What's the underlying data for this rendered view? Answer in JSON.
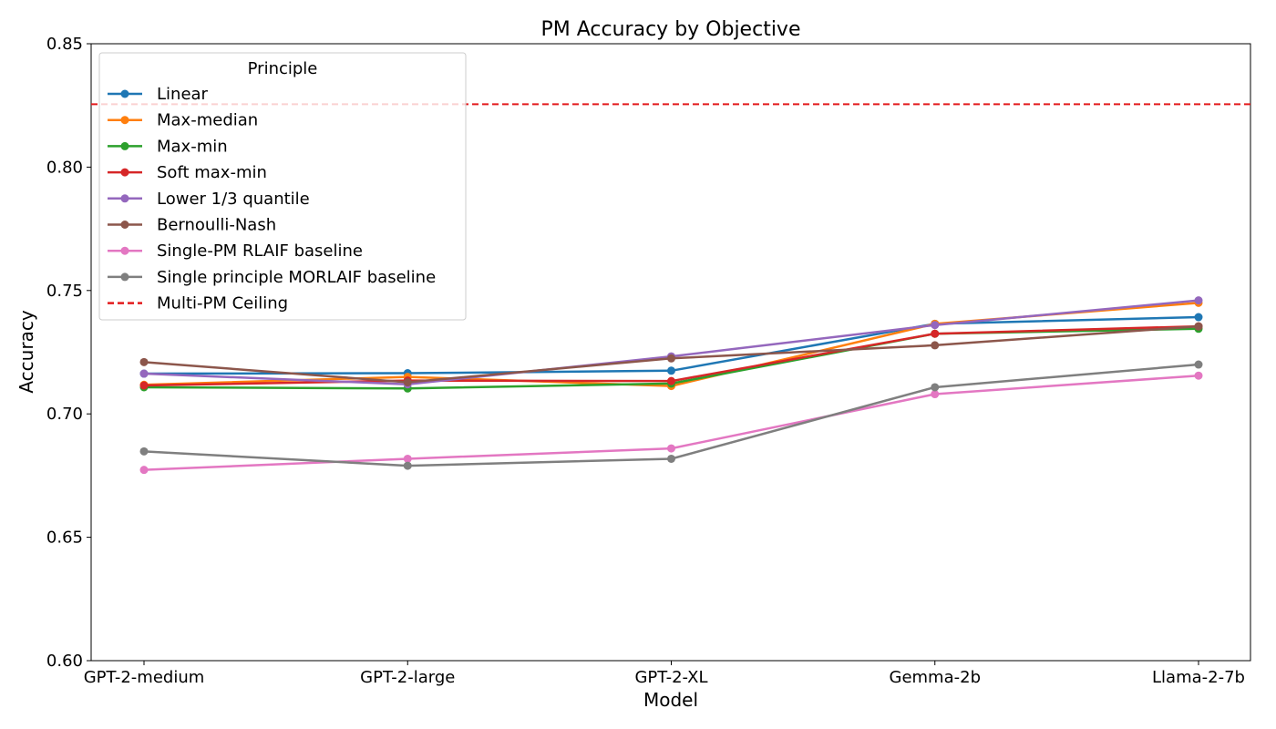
{
  "chart_data": {
    "type": "line",
    "title": "PM Accuracy by Objective",
    "xlabel": "Model",
    "ylabel": "Accuracy",
    "categories": [
      "GPT-2-medium",
      "GPT-2-large",
      "GPT-2-XL",
      "Gemma-2b",
      "Llama-2-7b"
    ],
    "ylim": [
      0.6,
      0.85
    ],
    "yticks": [
      0.6,
      0.65,
      0.7,
      0.75,
      0.8,
      0.85
    ],
    "ytick_labels": [
      "0.60",
      "0.65",
      "0.70",
      "0.75",
      "0.80",
      "0.85"
    ],
    "grid": false,
    "legend": {
      "title": "Principle",
      "placement": "top-left"
    },
    "series": [
      {
        "name": "Linear",
        "color": "#1f77b4",
        "values": [
          0.7163,
          0.7165,
          0.7175,
          0.7365,
          0.7392
        ]
      },
      {
        "name": "Max-median",
        "color": "#ff7f0e",
        "values": [
          0.7118,
          0.715,
          0.7113,
          0.7365,
          0.745
        ]
      },
      {
        "name": "Max-min",
        "color": "#2ca02c",
        "values": [
          0.7108,
          0.7103,
          0.7123,
          0.7325,
          0.7345
        ]
      },
      {
        "name": "Soft max-min",
        "color": "#d62728",
        "values": [
          0.7115,
          0.7135,
          0.7133,
          0.7325,
          0.7355
        ]
      },
      {
        "name": "Lower 1/3 quantile",
        "color": "#9467bd",
        "values": [
          0.7163,
          0.712,
          0.7233,
          0.736,
          0.746
        ]
      },
      {
        "name": "Bernoulli-Nash",
        "color": "#8c564b",
        "values": [
          0.721,
          0.7128,
          0.7225,
          0.7278,
          0.7355
        ]
      },
      {
        "name": "Single-PM RLAIF baseline",
        "color": "#e377c2",
        "values": [
          0.6773,
          0.6818,
          0.686,
          0.708,
          0.7155
        ]
      },
      {
        "name": "Single principle MORLAIF baseline",
        "color": "#7f7f7f",
        "values": [
          0.6848,
          0.679,
          0.6818,
          0.7108,
          0.72
        ]
      }
    ],
    "reference_lines": [
      {
        "name": "Multi-PM Ceiling",
        "color": "#e31a1c",
        "style": "dashed",
        "value": 0.8255
      }
    ]
  }
}
